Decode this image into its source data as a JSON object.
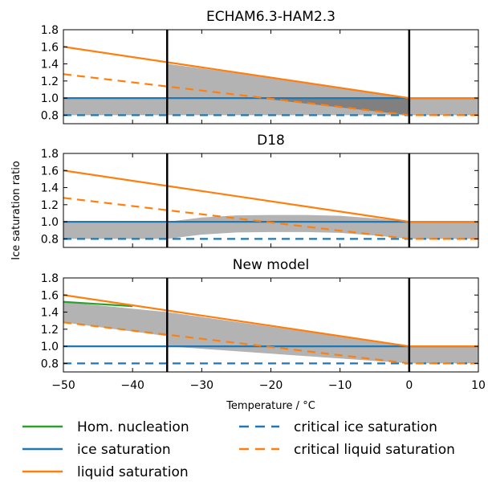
{
  "chart_data": [
    {
      "type": "line",
      "title": "ECHAM6.3-HAM2.3",
      "xlim": [
        -50,
        10
      ],
      "ylim": [
        0.7,
        1.8
      ],
      "yticks": [
        0.8,
        1.0,
        1.2,
        1.4,
        1.6,
        1.8
      ],
      "vlines": [
        -35,
        0
      ],
      "shade": [
        {
          "x": [
            -35,
            -22,
            0,
            10
          ],
          "upper": [
            1.4,
            1.264,
            1.0,
            1.0
          ],
          "lower": [
            0.8,
            0.8,
            0.8,
            0.8
          ],
          "color": "#b3b3b3"
        },
        {
          "x": [
            -22,
            0
          ],
          "upper": [
            1.0,
            1.0
          ],
          "lower": [
            1.0,
            0.8
          ],
          "color": "#808080"
        },
        {
          "x": [
            -50,
            -35
          ],
          "upper": [
            1.0,
            1.0
          ],
          "lower": [
            0.8,
            0.8
          ],
          "color": "#b3b3b3"
        }
      ],
      "series": [
        {
          "name": "ice saturation",
          "x": [
            -50,
            10
          ],
          "y": [
            1.0,
            1.0
          ],
          "style": "solid",
          "color": "#1f77b4"
        },
        {
          "name": "liquid saturation",
          "x": [
            -50,
            0,
            10
          ],
          "y": [
            1.6,
            1.0,
            1.0
          ],
          "style": "solid",
          "color": "#ff7f0e"
        },
        {
          "name": "critical ice saturation",
          "x": [
            -50,
            10
          ],
          "y": [
            0.8,
            0.8
          ],
          "style": "dashed",
          "color": "#1f77b4"
        },
        {
          "name": "critical liquid saturation",
          "x": [
            -50,
            0,
            10
          ],
          "y": [
            1.28,
            0.8,
            0.8
          ],
          "style": "dashed",
          "color": "#ff7f0e"
        }
      ]
    },
    {
      "type": "line",
      "title": "D18",
      "xlim": [
        -50,
        10
      ],
      "ylim": [
        0.7,
        1.8
      ],
      "yticks": [
        0.8,
        1.0,
        1.2,
        1.4,
        1.6,
        1.8
      ],
      "vlines": [
        -35,
        0
      ],
      "shade": [
        {
          "x": [
            -50,
            -35
          ],
          "upper": [
            1.0,
            1.0
          ],
          "lower": [
            0.8,
            0.8
          ],
          "color": "#b3b3b3"
        },
        {
          "x": [
            -35,
            -30,
            -25,
            -20,
            -15,
            -10,
            -5,
            0
          ],
          "upper": [
            1.0,
            1.05,
            1.075,
            1.08,
            1.08,
            1.07,
            1.04,
            1.0
          ],
          "lower": [
            0.8,
            0.85,
            0.875,
            0.88,
            0.88,
            0.87,
            0.84,
            0.8
          ],
          "color": "#b3b3b3"
        },
        {
          "x": [
            0,
            10
          ],
          "upper": [
            1.0,
            1.0
          ],
          "lower": [
            0.8,
            0.8
          ],
          "color": "#b3b3b3"
        }
      ],
      "series": [
        {
          "name": "ice saturation",
          "x": [
            -50,
            10
          ],
          "y": [
            1.0,
            1.0
          ],
          "style": "solid",
          "color": "#1f77b4"
        },
        {
          "name": "liquid saturation",
          "x": [
            -50,
            0,
            10
          ],
          "y": [
            1.6,
            1.0,
            1.0
          ],
          "style": "solid",
          "color": "#ff7f0e"
        },
        {
          "name": "critical ice saturation",
          "x": [
            -50,
            10
          ],
          "y": [
            0.8,
            0.8
          ],
          "style": "dashed",
          "color": "#1f77b4"
        },
        {
          "name": "critical liquid saturation",
          "x": [
            -50,
            0,
            10
          ],
          "y": [
            1.28,
            0.8,
            0.8
          ],
          "style": "dashed",
          "color": "#ff7f0e"
        }
      ]
    },
    {
      "type": "line",
      "title": "New model",
      "xlim": [
        -50,
        10
      ],
      "ylim": [
        0.7,
        1.8
      ],
      "yticks": [
        0.8,
        1.0,
        1.2,
        1.4,
        1.6,
        1.8
      ],
      "xticks": [
        -50,
        -40,
        -30,
        -20,
        -10,
        0,
        10
      ],
      "xtick_labels": [
        "−50",
        "−40",
        "−30",
        "−20",
        "−10",
        "0",
        "10"
      ],
      "xlabel": "Temperature / °C",
      "vlines": [
        -35,
        0
      ],
      "shade": [
        {
          "x": [
            -50,
            -35,
            0,
            10
          ],
          "upper": [
            1.52,
            1.4,
            1.0,
            1.0
          ],
          "lower": [
            1.28,
            1.12,
            0.8,
            0.8
          ],
          "color": "#b3b3b3"
        },
        {
          "x": [
            -35,
            0
          ],
          "upper": [
            1.12,
            1.0
          ],
          "lower": [
            1.0,
            0.8
          ],
          "color": "#b3b3b3"
        }
      ],
      "series": [
        {
          "name": "Hom. nucleation",
          "x": [
            -50,
            -40
          ],
          "y": [
            1.52,
            1.47
          ],
          "style": "solid",
          "color": "#2ca02c"
        },
        {
          "name": "ice saturation",
          "x": [
            -50,
            10
          ],
          "y": [
            1.0,
            1.0
          ],
          "style": "solid",
          "color": "#1f77b4"
        },
        {
          "name": "liquid saturation",
          "x": [
            -50,
            0,
            10
          ],
          "y": [
            1.6,
            1.0,
            1.0
          ],
          "style": "solid",
          "color": "#ff7f0e"
        },
        {
          "name": "critical ice saturation",
          "x": [
            -50,
            10
          ],
          "y": [
            0.8,
            0.8
          ],
          "style": "dashed",
          "color": "#1f77b4"
        },
        {
          "name": "critical liquid saturation",
          "x": [
            -50,
            0,
            10
          ],
          "y": [
            1.28,
            0.8,
            0.8
          ],
          "style": "dashed",
          "color": "#ff7f0e"
        }
      ]
    }
  ],
  "ylabel": "Ice saturation ratio",
  "legend": {
    "placement": "bottom",
    "entries": [
      {
        "label": "Hom. nucleation",
        "color": "#2ca02c",
        "style": "solid"
      },
      {
        "label": "critical ice saturation",
        "color": "#1f77b4",
        "style": "dashed"
      },
      {
        "label": "ice saturation",
        "color": "#1f77b4",
        "style": "solid"
      },
      {
        "label": "critical liquid saturation",
        "color": "#ff7f0e",
        "style": "dashed"
      },
      {
        "label": "liquid saturation",
        "color": "#ff7f0e",
        "style": "solid"
      }
    ]
  }
}
